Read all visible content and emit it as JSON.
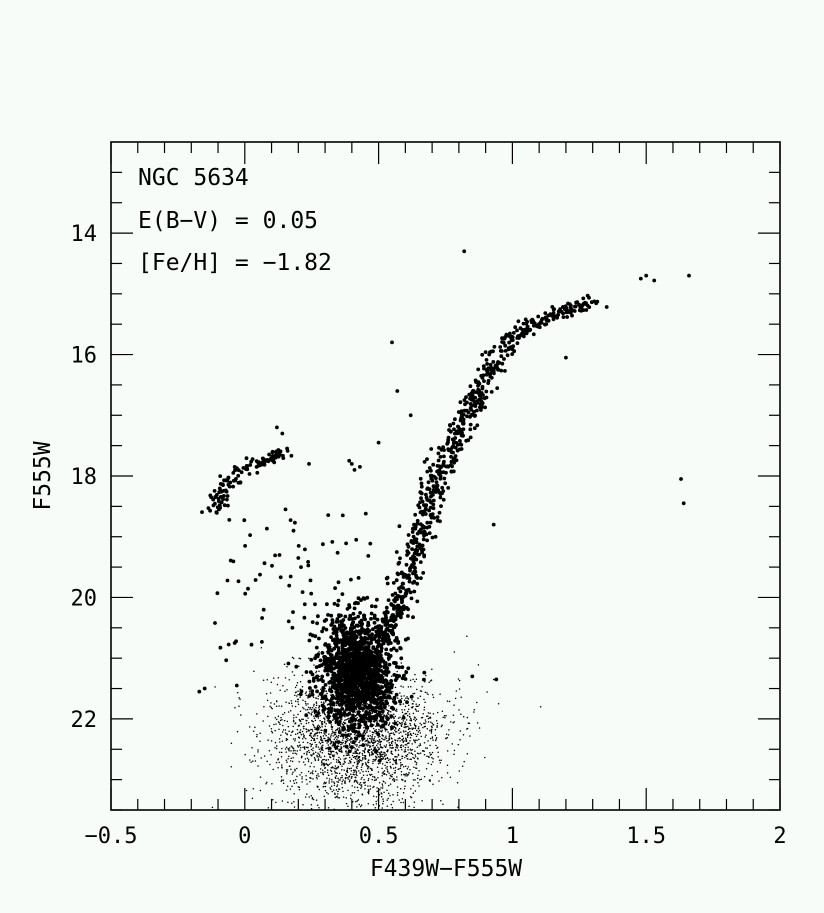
{
  "chart_data": {
    "type": "scatter",
    "title": "",
    "xlabel": "F439W−F555W",
    "ylabel": "F555W",
    "xlim": [
      -0.5,
      2.0
    ],
    "ylim": [
      23.5,
      12.5
    ],
    "y_inverted": true,
    "grid": false,
    "legend": "none",
    "x_ticks": [
      -0.5,
      0,
      0.5,
      1,
      1.5,
      2
    ],
    "x_tick_labels": [
      "−0.5",
      "0",
      "0.5",
      "1",
      "1.5",
      "2"
    ],
    "y_ticks": [
      14,
      16,
      18,
      20,
      22
    ],
    "y_tick_labels": [
      "14",
      "16",
      "18",
      "20",
      "22"
    ],
    "annotations": [
      "NGC 5634",
      "E(B−V) = 0.05",
      "[Fe/H] = −1.82"
    ],
    "series": [
      {
        "marker": "dot-large",
        "color": "#000000",
        "features": [
          {
            "kind": "turnoff-clump",
            "color_center": 0.42,
            "mag_center": 21.2,
            "color_sigma": 0.07,
            "mag_sigma": 0.45,
            "count": 1500
          },
          {
            "kind": "red-giant-branch",
            "path": [
              [
                0.52,
                20.7
              ],
              [
                0.58,
                20.1
              ],
              [
                0.62,
                19.5
              ],
              [
                0.66,
                18.8
              ],
              [
                0.72,
                18.0
              ],
              [
                0.79,
                17.4
              ],
              [
                0.86,
                16.8
              ],
              [
                0.93,
                16.1
              ],
              [
                1.0,
                15.7
              ],
              [
                1.1,
                15.45
              ],
              [
                1.2,
                15.3
              ],
              [
                1.3,
                15.1
              ]
            ],
            "count": 700,
            "spread": 0.025
          },
          {
            "kind": "horizontal-branch",
            "path": [
              [
                -0.12,
                18.6
              ],
              [
                -0.08,
                18.2
              ],
              [
                -0.03,
                17.95
              ],
              [
                0.03,
                17.8
              ],
              [
                0.1,
                17.7
              ],
              [
                0.15,
                17.6
              ]
            ],
            "count": 120,
            "spread": 0.02
          },
          {
            "kind": "field-scatter",
            "x_range": [
              -0.15,
              0.6
            ],
            "y_range": [
              18.5,
              21.2
            ],
            "count": 80
          }
        ],
        "points": [
          [
            0.82,
            14.3
          ],
          [
            1.48,
            14.75
          ],
          [
            1.5,
            14.7
          ],
          [
            1.53,
            14.78
          ],
          [
            1.66,
            14.7
          ],
          [
            0.55,
            15.8
          ],
          [
            1.2,
            16.05
          ],
          [
            1.63,
            18.05
          ],
          [
            1.64,
            18.45
          ],
          [
            0.93,
            18.8
          ],
          [
            0.4,
            17.8
          ],
          [
            0.41,
            17.9
          ],
          [
            0.43,
            17.85
          ],
          [
            0.39,
            17.75
          ],
          [
            0.5,
            17.45
          ],
          [
            0.57,
            16.6
          ],
          [
            0.62,
            17.0
          ],
          [
            0.12,
            17.2
          ],
          [
            0.14,
            17.3
          ],
          [
            0.24,
            17.8
          ],
          [
            0.85,
            21.3
          ],
          [
            0.94,
            21.35
          ],
          [
            -0.17,
            21.55
          ],
          [
            -0.15,
            21.5
          ],
          [
            -0.03,
            21.45
          ],
          [
            0.35,
            19.75
          ],
          [
            0.2,
            19.35
          ],
          [
            0.21,
            19.5
          ]
        ]
      },
      {
        "marker": "dot-small",
        "color": "#000000",
        "features": [
          {
            "kind": "faint-main-sequence",
            "color_center": 0.42,
            "mag_center": 22.3,
            "color_sigma": 0.16,
            "mag_sigma": 0.55,
            "count": 2600
          }
        ]
      }
    ]
  }
}
